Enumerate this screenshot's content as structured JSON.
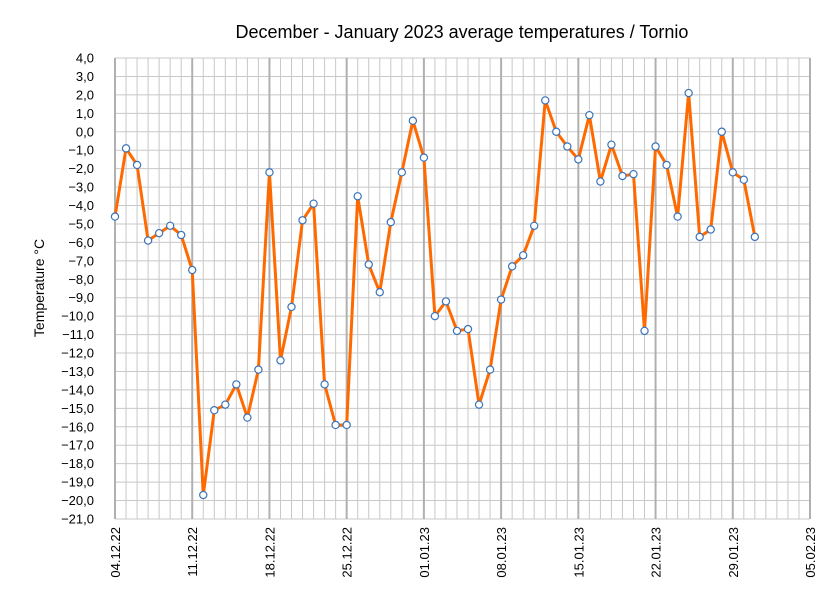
{
  "chart_data": {
    "type": "line",
    "title": "December - January 2023  average temperatures  / Tornio",
    "xlabel": "",
    "ylabel": "Temperature  °C",
    "ylim": [
      -21,
      4
    ],
    "ystep": 1,
    "ytick_labels": [
      "4,0",
      "3,0",
      "2,0",
      "1,0",
      "0,0",
      "−1,0",
      "−2,0",
      "−3,0",
      "−4,0",
      "−5,0",
      "−6,0",
      "−7,0",
      "−8,0",
      "−9,0",
      "−10,0",
      "−11,0",
      "−12,0",
      "−13,0",
      "−14,0",
      "−15,0",
      "−16,0",
      "−17,0",
      "−18,0",
      "−19,0",
      "−20,0",
      "−21,0"
    ],
    "x_start_label": "04.12.22",
    "x_tick_labels": [
      "04.12.22",
      "11.12.22",
      "18.12.22",
      "25.12.22",
      "01.01.23",
      "08.01.23",
      "15.01.23",
      "22.01.23",
      "29.01.23",
      "05.02.23"
    ],
    "x_tick_step_days": 7,
    "grid": true,
    "legend": "none",
    "series": [
      {
        "color": "#ff6a00",
        "marker_edge": "#3b73b9",
        "values": [
          -4.6,
          -0.9,
          -1.8,
          -5.9,
          -5.5,
          -5.1,
          -5.6,
          -7.5,
          -19.7,
          -15.1,
          -14.8,
          -13.7,
          -15.5,
          -12.9,
          -2.2,
          -12.4,
          -9.5,
          -4.8,
          -3.9,
          -13.7,
          -15.9,
          -15.9,
          -3.5,
          -7.2,
          -8.7,
          -4.9,
          -2.2,
          0.6,
          -1.4,
          -10.0,
          -9.2,
          -10.8,
          -10.7,
          -14.8,
          -12.9,
          -9.1,
          -7.3,
          -6.7,
          -5.1,
          1.7,
          0.0,
          -0.8,
          -1.5,
          0.9,
          -2.7,
          -0.7,
          -2.4,
          -2.3,
          -10.8,
          -0.8,
          -1.8,
          -4.6,
          2.1,
          -5.7,
          -5.3,
          0.0,
          -2.2,
          -2.6,
          -5.7
        ]
      }
    ]
  }
}
